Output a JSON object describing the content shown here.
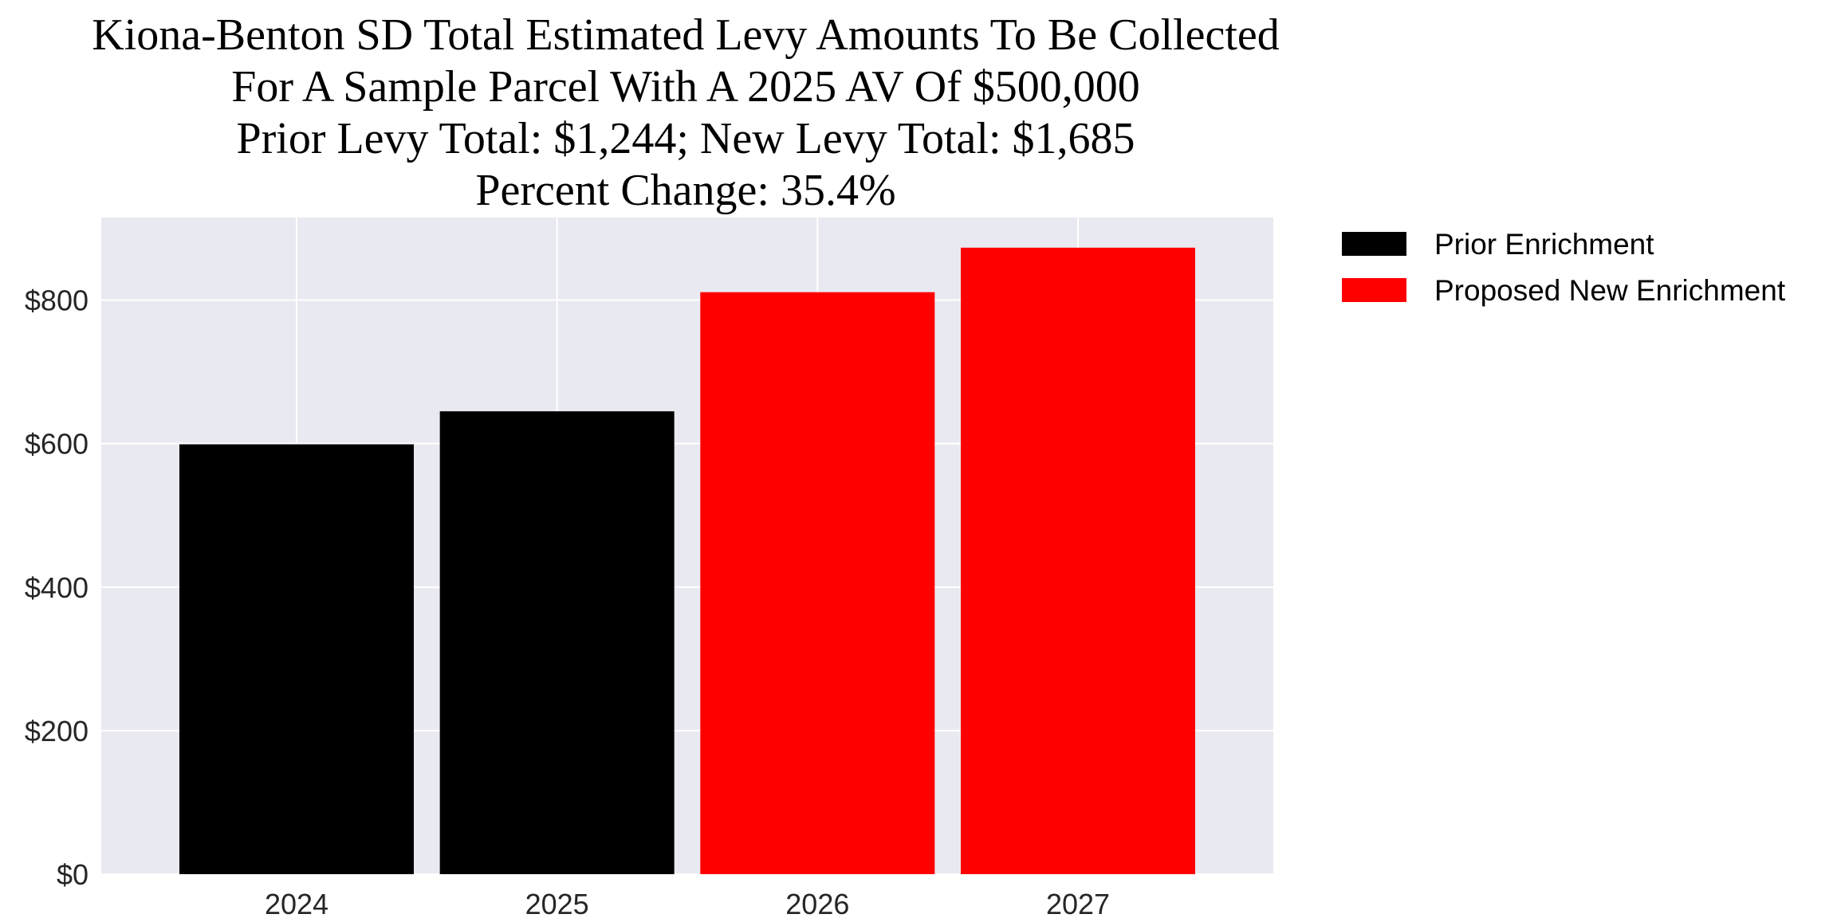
{
  "chart_data": {
    "type": "bar",
    "title_lines": [
      "Kiona-Benton SD Total Estimated Levy Amounts To Be Collected",
      "For A Sample Parcel With A 2025 AV Of $500,000",
      "Prior Levy Total:  $1,244; New Levy Total: $1,685",
      "Percent Change: 35.4%"
    ],
    "categories": [
      "2024",
      "2025",
      "2026",
      "2027"
    ],
    "values": [
      599,
      645,
      811,
      873
    ],
    "bar_series": [
      "prior",
      "prior",
      "proposed",
      "proposed"
    ],
    "ylim": [
      0,
      915
    ],
    "yticks": [
      0,
      200,
      400,
      600,
      800
    ],
    "ytick_labels": [
      "$0",
      "$200",
      "$400",
      "$600",
      "$800"
    ],
    "xlabel": "",
    "ylabel": "",
    "grid": true,
    "legend_position": "outside-top-right",
    "legend": [
      {
        "key": "prior",
        "label": "Prior Enrichment",
        "color": "#000000"
      },
      {
        "key": "proposed",
        "label": "Proposed New Enrichment",
        "color": "#ff0000"
      }
    ],
    "colors": {
      "plot_background": "#e9e9f1",
      "grid": "#ffffff"
    }
  }
}
